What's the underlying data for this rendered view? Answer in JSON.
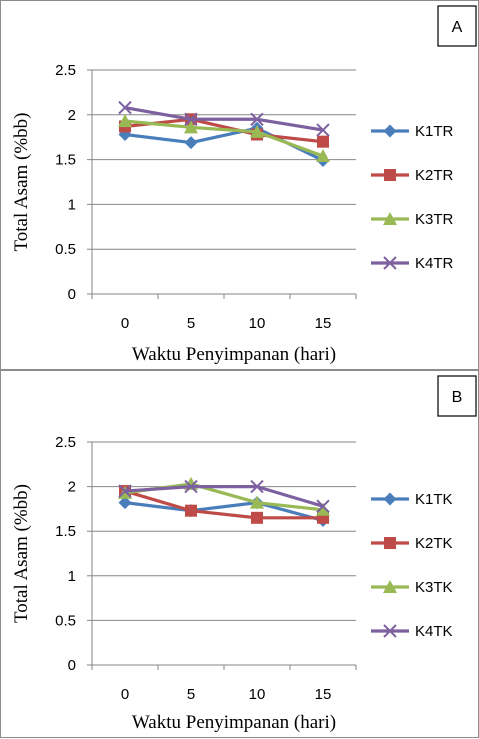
{
  "chart_data": [
    {
      "type": "line",
      "panel_label": "A",
      "xlabel": "Waktu Penyimpanan (hari)",
      "ylabel": "Total Asam (%bb)",
      "categories": [
        "0",
        "5",
        "10",
        "15"
      ],
      "ylim": [
        0,
        2.5
      ],
      "yticks": [
        "0",
        "0.5",
        "1",
        "1.5",
        "2",
        "2.5"
      ],
      "grid": true,
      "legend_position": "right",
      "series": [
        {
          "name": "K1TR",
          "values": [
            1.78,
            1.69,
            1.85,
            1.49
          ],
          "color": "#4a7ebb",
          "marker": "diamond"
        },
        {
          "name": "K2TR",
          "values": [
            1.87,
            1.95,
            1.78,
            1.7
          ],
          "color": "#be4b48",
          "marker": "square"
        },
        {
          "name": "K3TR",
          "values": [
            1.93,
            1.86,
            1.81,
            1.54
          ],
          "color": "#98b954",
          "marker": "triangle"
        },
        {
          "name": "K4TR",
          "values": [
            2.08,
            1.95,
            1.95,
            1.83
          ],
          "color": "#7d60a0",
          "marker": "x"
        }
      ]
    },
    {
      "type": "line",
      "panel_label": "B",
      "xlabel": "Waktu Penyimpanan (hari)",
      "ylabel": "Total Asam (%bb)",
      "categories": [
        "0",
        "5",
        "10",
        "15"
      ],
      "ylim": [
        0,
        2.5
      ],
      "yticks": [
        "0",
        "0.5",
        "1",
        "1.5",
        "2",
        "2.5"
      ],
      "grid": true,
      "legend_position": "right",
      "series": [
        {
          "name": "K1TK",
          "values": [
            1.82,
            1.73,
            1.82,
            1.62
          ],
          "color": "#4a7ebb",
          "marker": "diamond"
        },
        {
          "name": "K2TK",
          "values": [
            1.95,
            1.73,
            1.65,
            1.65
          ],
          "color": "#be4b48",
          "marker": "square"
        },
        {
          "name": "K3TK",
          "values": [
            1.93,
            2.03,
            1.82,
            1.74
          ],
          "color": "#98b954",
          "marker": "triangle"
        },
        {
          "name": "K4TK",
          "values": [
            1.95,
            2.0,
            2.0,
            1.78
          ],
          "color": "#7d60a0",
          "marker": "x"
        }
      ]
    }
  ]
}
